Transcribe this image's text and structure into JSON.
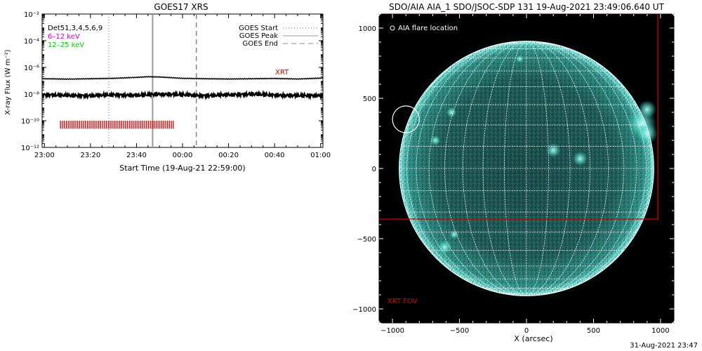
{
  "left_panel": {
    "title": "GOES17 XRS",
    "ylabel": "X-ray Flux (W m⁻²)",
    "xlabel": "Start Time (19-Aug-21 22:59:00)",
    "annotation_xrt": "XRT",
    "legend_top_left": [
      {
        "text": "Det51,3,4,5,6,9",
        "color": "#000000"
      },
      {
        "text": "6–12 keV",
        "color": "#cc00cc"
      },
      {
        "text": "12–25 keV",
        "color": "#00cc00"
      }
    ],
    "legend_top_right": [
      {
        "text": "GOES Start",
        "style": "dotted"
      },
      {
        "text": "GOES Peak",
        "style": "solid"
      },
      {
        "text": "GOES End",
        "style": "dashed"
      }
    ]
  },
  "right_panel": {
    "title": "SDO/AIA AIA_1 SDO/JSOC-SDP 131 19-Aug-2021 23:49:06.640 UT",
    "legend_circle": "AIA flare location",
    "fov_label": "XRT FOV",
    "xlabel": "X (arcsec)"
  },
  "footer_timestamp": "31-Aug-2021 23:47",
  "colors": {
    "xrt_red": "#dd0000",
    "sun_teal": "#2fb9ad",
    "grid_white": "#ffffff"
  },
  "chart_data": [
    {
      "type": "line",
      "title": "GOES17 XRS",
      "xlabel": "Start Time (19-Aug-21 22:59:00)",
      "ylabel": "X-ray Flux (W m⁻²)",
      "yscale": "log",
      "ylim": [
        1e-12,
        0.01
      ],
      "y_ticks": [
        {
          "v": -2,
          "label": "10⁻²"
        },
        {
          "v": -4,
          "label": "10⁻⁴"
        },
        {
          "v": -6,
          "label": "10⁻⁶"
        },
        {
          "v": -8,
          "label": "10⁻⁸"
        },
        {
          "v": -10,
          "label": "10⁻¹⁰"
        },
        {
          "v": -12,
          "label": "10⁻¹²"
        }
      ],
      "xlim_minutes_after_2300": [
        -1,
        121
      ],
      "x_ticks": [
        {
          "m": 0,
          "label": "23:00"
        },
        {
          "m": 20,
          "label": "23:20"
        },
        {
          "m": 40,
          "label": "23:40"
        },
        {
          "m": 60,
          "label": "00:00"
        },
        {
          "m": 80,
          "label": "00:20"
        },
        {
          "m": 100,
          "label": "00:40"
        },
        {
          "m": 120,
          "label": "01:00"
        }
      ],
      "series": [
        {
          "name": "",
          "color": "#000000",
          "log10_flux": [
            [
              0,
              -6.85
            ],
            [
              10,
              -6.88
            ],
            [
              20,
              -6.85
            ],
            [
              30,
              -6.82
            ],
            [
              40,
              -6.75
            ],
            [
              45,
              -6.7
            ],
            [
              50,
              -6.72
            ],
            [
              60,
              -6.82
            ],
            [
              70,
              -6.85
            ],
            [
              80,
              -6.87
            ],
            [
              90,
              -6.85
            ],
            [
              100,
              -6.83
            ],
            [
              110,
              -6.87
            ],
            [
              121,
              -6.8
            ]
          ]
        },
        {
          "name": "",
          "color": "#000000",
          "log10_flux": [
            [
              0,
              -8.05
            ],
            [
              10,
              -8.1
            ],
            [
              20,
              -8.12
            ],
            [
              30,
              -8.05
            ],
            [
              40,
              -8.1
            ],
            [
              50,
              -8.0
            ],
            [
              60,
              -8.05
            ],
            [
              70,
              -8.12
            ],
            [
              80,
              -8.05
            ],
            [
              90,
              -8.0
            ],
            [
              100,
              -8.08
            ],
            [
              110,
              -8.12
            ],
            [
              121,
              -8.1
            ]
          ]
        }
      ],
      "vertical_lines": [
        {
          "label": "GOES Start",
          "time": "23:28",
          "minute": 28,
          "style": "dotted"
        },
        {
          "label": "GOES Peak",
          "time": "23:47",
          "minute": 47,
          "style": "solid"
        },
        {
          "label": "GOES End",
          "time": "00:06",
          "minute": 66,
          "style": "dashed"
        }
      ],
      "xrt_observations": {
        "start_minute": 7,
        "end_minute": 56,
        "log10_flux_level": -10.3,
        "tick_height_decades": 0.6,
        "count": 60,
        "color": "#dd0000"
      }
    },
    {
      "type": "scatter",
      "title": "SDO/AIA AIA_1 SDO/JSOC-SDP 131 19-Aug-2021 23:49:06.640 UT",
      "xlabel": "X (arcsec)",
      "ylabel": "",
      "xlim": [
        -1100,
        1100
      ],
      "ylim": [
        -1100,
        1100
      ],
      "x_ticks": [
        -1000,
        -500,
        0,
        500,
        1000
      ],
      "y_ticks": [
        -1000,
        -500,
        0,
        500,
        1000
      ],
      "solar_radius_arcsec": 950,
      "flare_location": {
        "x": -900,
        "y": 350,
        "radius": 100
      },
      "xrt_fov": {
        "x0": -1100,
        "x1": 980,
        "y0": -360,
        "y1": 1100,
        "color": "#dd0000"
      },
      "bright_regions": [
        {
          "x": 860,
          "y": 320,
          "r": 110
        },
        {
          "x": 900,
          "y": 420,
          "r": 70
        },
        {
          "x": 900,
          "y": 250,
          "r": 80
        },
        {
          "x": 200,
          "y": 130,
          "r": 55
        },
        {
          "x": 400,
          "y": 70,
          "r": 55
        },
        {
          "x": -560,
          "y": 400,
          "r": 40
        },
        {
          "x": -610,
          "y": -560,
          "r": 55
        },
        {
          "x": -540,
          "y": -470,
          "r": 35
        },
        {
          "x": -680,
          "y": 200,
          "r": 40
        },
        {
          "x": -50,
          "y": 780,
          "r": 30
        }
      ]
    }
  ]
}
